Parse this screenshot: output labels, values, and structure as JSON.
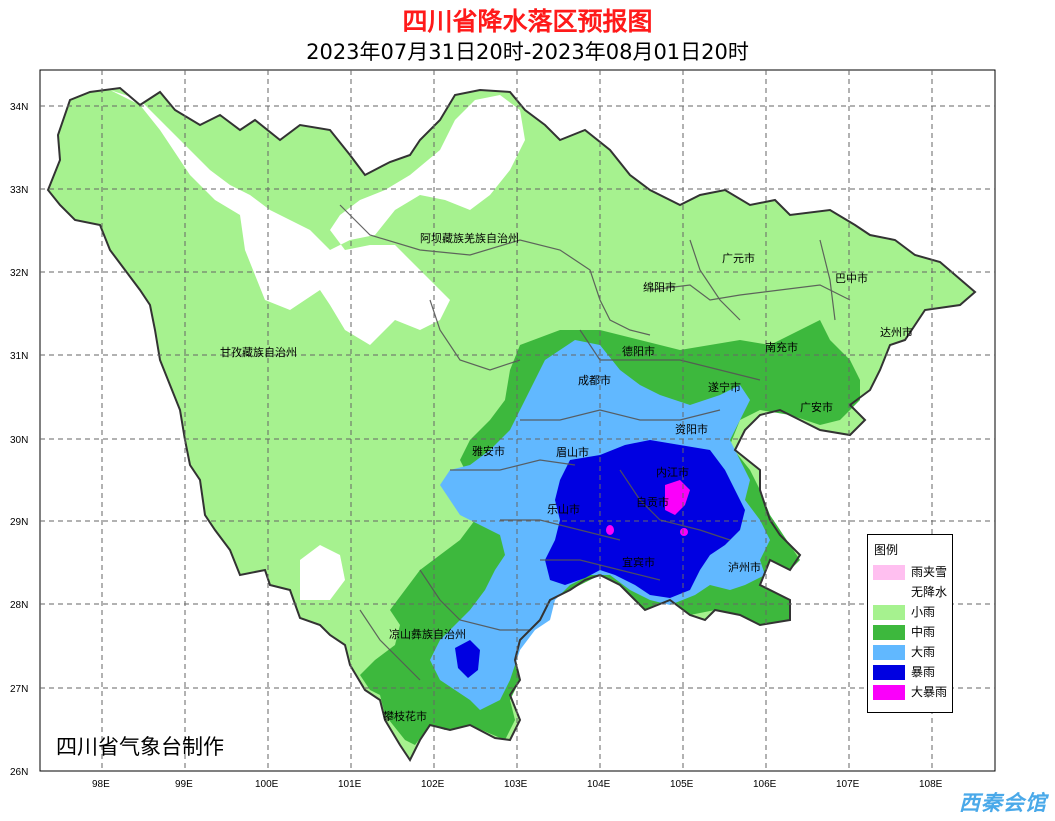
{
  "title": "四川省降水落区预报图",
  "subtitle": "2023年07月31日20时-2023年08月01日20时",
  "credit": "四川省气象台制作",
  "watermark": "西秦会馆",
  "axes": {
    "lat_labels": [
      "34N",
      "33N",
      "32N",
      "31N",
      "30N",
      "29N",
      "28N",
      "27N",
      "26N"
    ],
    "lon_labels": [
      "98E",
      "99E",
      "100E",
      "101E",
      "102E",
      "103E",
      "104E",
      "105E",
      "106E",
      "107E",
      "108E"
    ]
  },
  "cities": [
    {
      "name": "阿坝藏族羌族自治州"
    },
    {
      "name": "甘孜藏族自治州"
    },
    {
      "name": "广元市"
    },
    {
      "name": "巴中市"
    },
    {
      "name": "绵阳市"
    },
    {
      "name": "达州市"
    },
    {
      "name": "德阳市"
    },
    {
      "name": "南充市"
    },
    {
      "name": "成都市"
    },
    {
      "name": "遂宁市"
    },
    {
      "name": "广安市"
    },
    {
      "name": "资阳市"
    },
    {
      "name": "雅安市"
    },
    {
      "name": "眉山市"
    },
    {
      "name": "内江市"
    },
    {
      "name": "乐山市"
    },
    {
      "name": "自贡市"
    },
    {
      "name": "宜宾市"
    },
    {
      "name": "泸州市"
    },
    {
      "name": "凉山彝族自治州"
    },
    {
      "name": "攀枝花市"
    }
  ],
  "legend": {
    "title": "图例",
    "items": [
      {
        "label": "雨夹雪",
        "color": "#ffbff0"
      },
      {
        "label": "无降水",
        "color": "#ffffff"
      },
      {
        "label": "小雨",
        "color": "#a6f28f"
      },
      {
        "label": "中雨",
        "color": "#3db83d"
      },
      {
        "label": "大雨",
        "color": "#61b8ff"
      },
      {
        "label": "暴雨",
        "color": "#0000e1"
      },
      {
        "label": "大暴雨",
        "color": "#fa00fa"
      }
    ]
  }
}
